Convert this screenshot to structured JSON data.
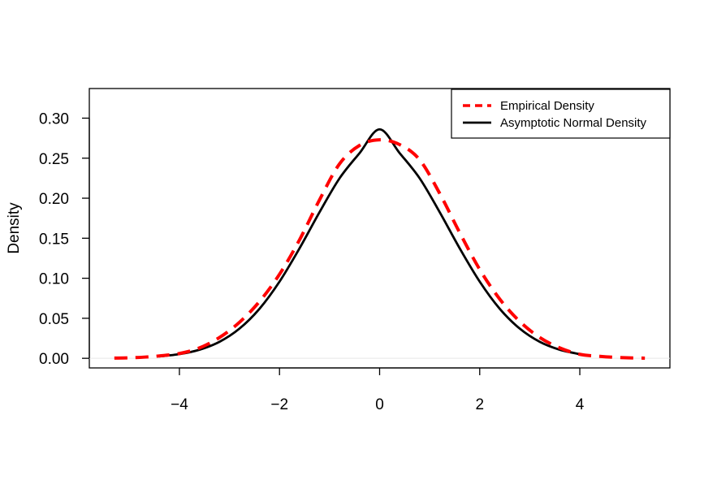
{
  "chart_data": {
    "type": "line",
    "title": "",
    "xlabel": "",
    "ylabel": "Density",
    "xlim": [
      -5.8,
      5.8
    ],
    "ylim": [
      -0.012,
      0.337
    ],
    "x_ticks": [
      -4,
      -2,
      0,
      2,
      4
    ],
    "x_tick_labels": [
      "−4",
      "−2",
      "0",
      "2",
      "4"
    ],
    "y_ticks": [
      0.0,
      0.05,
      0.1,
      0.15,
      0.2,
      0.25,
      0.3
    ],
    "y_tick_labels": [
      "0.00",
      "0.05",
      "0.10",
      "0.15",
      "0.20",
      "0.25",
      "0.30"
    ],
    "grid": false,
    "legend_position": "top-right",
    "series": [
      {
        "name": "Empirical Density",
        "color": "#ff0000",
        "style": "dashed",
        "x": [
          -5.3,
          -5.0,
          -4.7,
          -4.4,
          -4.0,
          -3.6,
          -3.2,
          -2.8,
          -2.4,
          -2.0,
          -1.6,
          -1.2,
          -0.8,
          -0.4,
          0.0,
          0.4,
          0.8,
          1.2,
          1.6,
          2.0,
          2.4,
          2.8,
          3.2,
          3.6,
          4.0,
          4.4,
          4.7,
          5.0,
          5.3
        ],
        "y": [
          0.0003,
          0.0006,
          0.0015,
          0.003,
          0.006,
          0.013,
          0.026,
          0.045,
          0.071,
          0.105,
          0.148,
          0.198,
          0.243,
          0.266,
          0.273,
          0.267,
          0.248,
          0.206,
          0.157,
          0.111,
          0.074,
          0.046,
          0.026,
          0.013,
          0.005,
          0.0025,
          0.0012,
          0.0005,
          0.0002
        ]
      },
      {
        "name": "Asymptotic Normal Density",
        "color": "#000000",
        "style": "solid",
        "x": [
          -4.4,
          -4.0,
          -3.6,
          -3.2,
          -2.8,
          -2.4,
          -2.0,
          -1.6,
          -1.2,
          -0.8,
          -0.4,
          0.0,
          0.4,
          0.8,
          1.2,
          1.6,
          2.0,
          2.4,
          2.8,
          3.2,
          3.6,
          4.0
        ],
        "y": [
          0.0024,
          0.0052,
          0.0107,
          0.0206,
          0.0371,
          0.0619,
          0.0958,
          0.1374,
          0.1826,
          0.2249,
          0.2564,
          0.286,
          0.2564,
          0.2249,
          0.1826,
          0.1374,
          0.0958,
          0.0619,
          0.0371,
          0.0206,
          0.0107,
          0.0052
        ]
      }
    ]
  }
}
